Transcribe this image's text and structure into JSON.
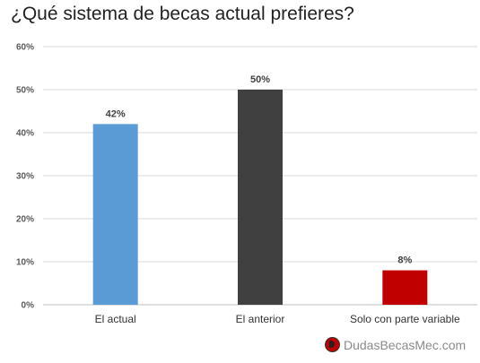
{
  "chart_data": {
    "type": "bar",
    "title": "¿Qué sistema de becas actual prefieres?",
    "categories": [
      "El actual",
      "El anterior",
      "Solo con parte variable"
    ],
    "values": [
      42,
      50,
      8
    ],
    "data_labels": [
      "42%",
      "50%",
      "8%"
    ],
    "colors": [
      "#5b9bd5",
      "#404040",
      "#c00000"
    ],
    "ylim": [
      0,
      60
    ],
    "yticks": [
      0,
      10,
      20,
      30,
      40,
      50,
      60
    ],
    "ytick_labels": [
      "0%",
      "10%",
      "20%",
      "30%",
      "40%",
      "50%",
      "60%"
    ],
    "grid": true,
    "xlabel": "",
    "ylabel": ""
  },
  "watermark": "DudasBecasMec.com"
}
